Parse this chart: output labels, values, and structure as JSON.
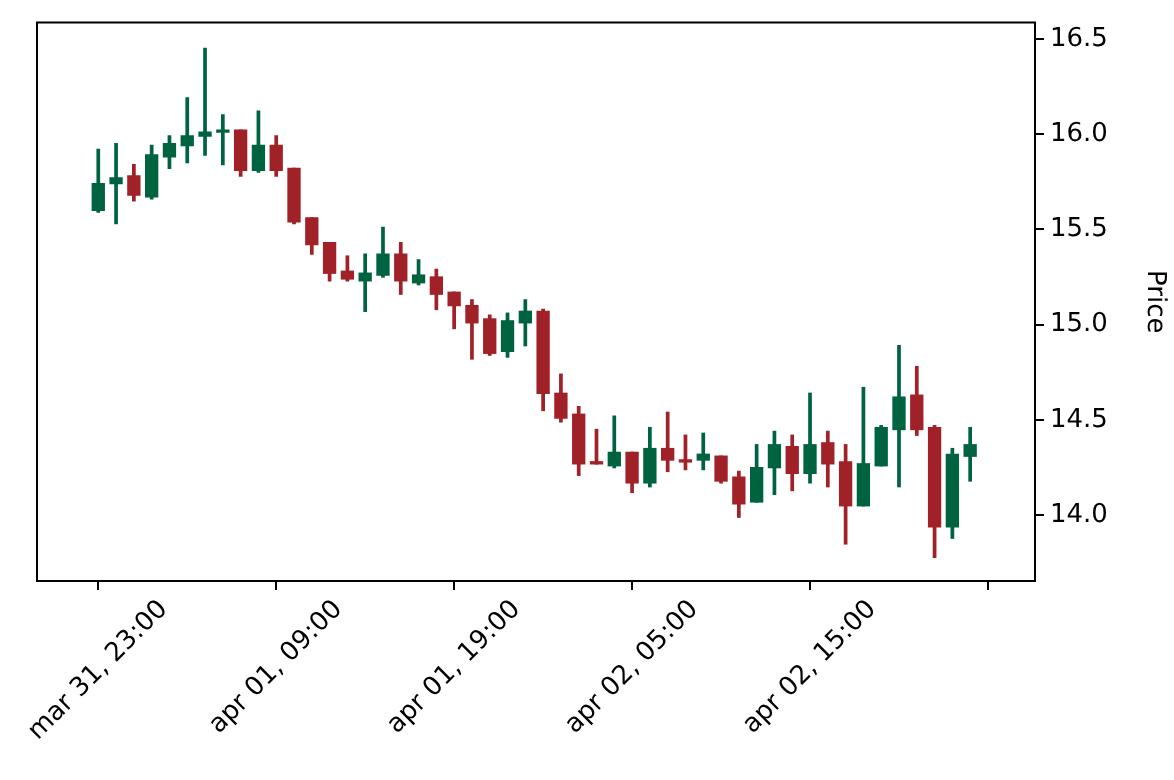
{
  "chart_data": {
    "type": "candlestick",
    "ylabel": "Price",
    "x": [
      "--03-31T23:00",
      "--04-01T00:00",
      "--04-01T01:00",
      "--04-01T02:00",
      "--04-01T03:00",
      "--04-01T04:00",
      "--04-01T05:00",
      "--04-01T06:00",
      "--04-01T07:00",
      "--04-01T08:00",
      "--04-01T09:00",
      "--04-01T10:00",
      "--04-01T11:00",
      "--04-01T12:00",
      "--04-01T13:00",
      "--04-01T14:00",
      "--04-01T15:00",
      "--04-01T16:00",
      "--04-01T17:00",
      "--04-01T18:00",
      "--04-01T19:00",
      "--04-01T20:00",
      "--04-01T21:00",
      "--04-01T22:00",
      "--04-01T23:00",
      "--04-02T00:00",
      "--04-02T01:00",
      "--04-02T02:00",
      "--04-02T03:00",
      "--04-02T04:00",
      "--04-02T05:00",
      "--04-02T06:00",
      "--04-02T07:00",
      "--04-02T08:00",
      "--04-02T09:00",
      "--04-02T10:00",
      "--04-02T11:00",
      "--04-02T12:00",
      "--04-02T13:00",
      "--04-02T14:00",
      "--04-02T15:00",
      "--04-02T16:00",
      "--04-02T17:00",
      "--04-02T18:00",
      "--04-02T19:00",
      "--04-02T20:00",
      "--04-02T21:00",
      "--04-02T22:00",
      "--04-02T23:00",
      "--04-03T00:00"
    ],
    "ohlc": [
      [
        15.6,
        15.92,
        15.59,
        15.74
      ],
      [
        15.74,
        15.95,
        15.53,
        15.77
      ],
      [
        15.78,
        15.84,
        15.65,
        15.68
      ],
      [
        15.67,
        15.94,
        15.66,
        15.89
      ],
      [
        15.88,
        15.99,
        15.82,
        15.95
      ],
      [
        15.94,
        16.19,
        15.85,
        15.99
      ],
      [
        15.99,
        16.45,
        15.89,
        16.01
      ],
      [
        16.01,
        16.1,
        15.84,
        16.02
      ],
      [
        16.02,
        16.02,
        15.78,
        15.81
      ],
      [
        15.81,
        16.12,
        15.8,
        15.94
      ],
      [
        15.94,
        15.99,
        15.78,
        15.81
      ],
      [
        15.82,
        15.82,
        15.53,
        15.54
      ],
      [
        15.56,
        15.56,
        15.37,
        15.42
      ],
      [
        15.43,
        15.43,
        15.23,
        15.27
      ],
      [
        15.28,
        15.36,
        15.23,
        15.24
      ],
      [
        15.23,
        15.37,
        15.07,
        15.27
      ],
      [
        15.26,
        15.51,
        15.25,
        15.37
      ],
      [
        15.37,
        15.43,
        15.16,
        15.23
      ],
      [
        15.22,
        15.34,
        15.21,
        15.26
      ],
      [
        15.25,
        15.29,
        15.08,
        15.16
      ],
      [
        15.17,
        15.17,
        14.98,
        15.1
      ],
      [
        15.1,
        15.13,
        14.82,
        15.01
      ],
      [
        15.03,
        15.05,
        14.84,
        14.85
      ],
      [
        14.86,
        15.06,
        14.83,
        15.02
      ],
      [
        15.01,
        15.13,
        14.89,
        15.07
      ],
      [
        15.07,
        15.08,
        14.55,
        14.64
      ],
      [
        14.64,
        14.74,
        14.49,
        14.51
      ],
      [
        14.53,
        14.57,
        14.21,
        14.27
      ],
      [
        14.28,
        14.45,
        14.27,
        14.27
      ],
      [
        14.26,
        14.52,
        14.25,
        14.33
      ],
      [
        14.33,
        14.33,
        14.12,
        14.17
      ],
      [
        14.17,
        14.46,
        14.15,
        14.35
      ],
      [
        14.35,
        14.54,
        14.23,
        14.29
      ],
      [
        14.29,
        14.42,
        14.24,
        14.28
      ],
      [
        14.29,
        14.43,
        14.24,
        14.32
      ],
      [
        14.31,
        14.31,
        14.17,
        14.18
      ],
      [
        14.2,
        14.23,
        13.99,
        14.06
      ],
      [
        14.07,
        14.37,
        14.07,
        14.25
      ],
      [
        14.25,
        14.44,
        14.11,
        14.37
      ],
      [
        14.36,
        14.42,
        14.13,
        14.22
      ],
      [
        14.22,
        14.64,
        14.17,
        14.37
      ],
      [
        14.38,
        14.44,
        14.15,
        14.27
      ],
      [
        14.28,
        14.37,
        13.85,
        14.05
      ],
      [
        14.05,
        14.67,
        14.05,
        14.27
      ],
      [
        14.26,
        14.47,
        14.26,
        14.46
      ],
      [
        14.45,
        14.89,
        14.15,
        14.62
      ],
      [
        14.63,
        14.78,
        14.42,
        14.45
      ],
      [
        14.46,
        14.47,
        13.78,
        13.94
      ],
      [
        13.94,
        14.35,
        13.88,
        14.32
      ],
      [
        14.31,
        14.46,
        14.18,
        14.37
      ]
    ],
    "colors": [
      "#006340",
      "#006340",
      "#a02128",
      "#006340",
      "#006340",
      "#006340",
      "#006340",
      "#006340",
      "#a02128",
      "#006340",
      "#a02128",
      "#a02128",
      "#a02128",
      "#a02128",
      "#a02128",
      "#006340",
      "#006340",
      "#a02128",
      "#006340",
      "#a02128",
      "#a02128",
      "#a02128",
      "#a02128",
      "#006340",
      "#006340",
      "#a02128",
      "#a02128",
      "#a02128",
      "#a02128",
      "#006340",
      "#a02128",
      "#006340",
      "#a02128",
      "#a02128",
      "#006340",
      "#a02128",
      "#a02128",
      "#006340",
      "#006340",
      "#a02128",
      "#006340",
      "#a02128",
      "#a02128",
      "#006340",
      "#006340",
      "#006340",
      "#a02128",
      "#a02128",
      "#006340",
      "#006340"
    ],
    "xlim": [
      "--03-31T19:30",
      "--04-03T03:42"
    ],
    "xticks": [
      {
        "value": "--03-31T23:00",
        "label": "mar 31, 23:00"
      },
      {
        "value": "--04-01T09:00",
        "label": "apr 01, 09:00"
      },
      {
        "value": "--04-01T19:00",
        "label": "apr 01, 19:00"
      },
      {
        "value": "--04-02T05:00",
        "label": "apr 02, 05:00"
      },
      {
        "value": "--04-02T15:00",
        "label": "apr 02, 15:00"
      },
      {
        "value": "--04-03T01:00",
        "label": null
      }
    ],
    "ylim": [
      13.65,
      16.59
    ],
    "yticks": [
      {
        "value": 14,
        "label": "14.0"
      },
      {
        "value": 14.5,
        "label": "14.5"
      },
      {
        "value": 15,
        "label": "15.0"
      },
      {
        "value": 15.5,
        "label": "15.5"
      },
      {
        "value": 16,
        "label": "16.0"
      },
      {
        "value": 16.5,
        "label": "16.5"
      }
    ]
  }
}
